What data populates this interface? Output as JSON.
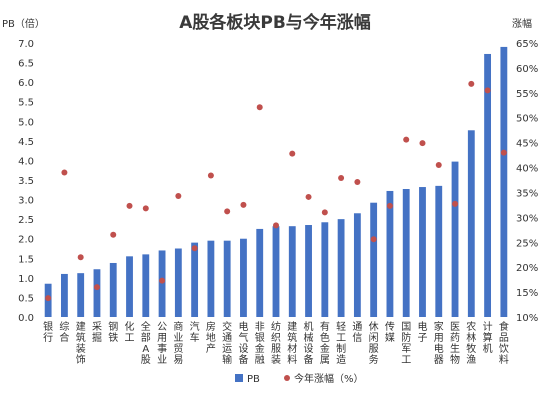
{
  "chart_data": {
    "type": "bar",
    "title": "A股各板块PB与今年涨幅",
    "ylabel_left": "PB（倍）",
    "ylabel_right": "涨幅",
    "ylim_left": [
      0,
      7
    ],
    "ylim_right": [
      0.1,
      0.65
    ],
    "left_ticks": [
      "0.0",
      "0.5",
      "1.0",
      "1.5",
      "2.0",
      "2.5",
      "3.0",
      "3.5",
      "4.0",
      "4.5",
      "5.0",
      "5.5",
      "6.0",
      "6.5",
      "7.0"
    ],
    "right_ticks": [
      "10%",
      "15%",
      "20%",
      "25%",
      "30%",
      "35%",
      "40%",
      "45%",
      "50%",
      "55%",
      "60%",
      "65%"
    ],
    "categories": [
      "银行",
      "综合",
      "建筑装饰",
      "采掘",
      "钢铁",
      "化工",
      "全部A股",
      "公用事业",
      "商业贸易",
      "汽车",
      "房地产",
      "交通运输",
      "电气设备",
      "非银金融",
      "纺织服装",
      "建筑材料",
      "机械设备",
      "有色金属",
      "轻工制造",
      "通信",
      "休闲服务",
      "传媒",
      "国防军工",
      "电子",
      "家用电器",
      "医药生物",
      "农林牧渔",
      "计算机",
      "食品饮料"
    ],
    "series": [
      {
        "name": "PB",
        "kind": "bar",
        "color": "#4472c4",
        "values": [
          0.85,
          1.1,
          1.12,
          1.22,
          1.38,
          1.55,
          1.6,
          1.7,
          1.75,
          1.9,
          1.95,
          1.95,
          2.0,
          2.25,
          2.32,
          2.32,
          2.35,
          2.42,
          2.5,
          2.65,
          2.92,
          3.22,
          3.27,
          3.32,
          3.35,
          3.97,
          4.77,
          6.72,
          6.9
        ]
      },
      {
        "name": "今年涨幅（%）",
        "kind": "scatter",
        "color": "#c0504d",
        "values": [
          0.138,
          0.39,
          0.22,
          0.16,
          0.265,
          0.323,
          0.318,
          0.173,
          0.343,
          0.238,
          0.384,
          0.312,
          0.325,
          0.521,
          0.284,
          0.428,
          0.341,
          0.31,
          0.379,
          0.371,
          0.256,
          0.323,
          0.456,
          0.449,
          0.405,
          0.327,
          0.568,
          0.555,
          0.43
        ]
      }
    ],
    "legend_position": "bottom",
    "grid": false
  }
}
